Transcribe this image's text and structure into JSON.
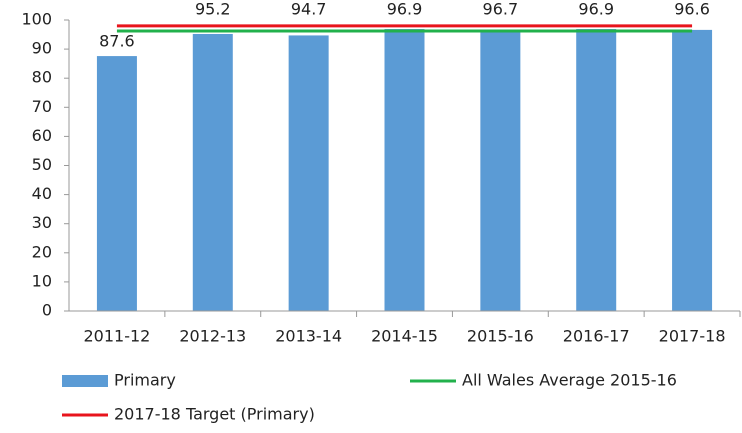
{
  "chart_data": {
    "type": "bar",
    "categories": [
      "2011-12",
      "2012-13",
      "2013-14",
      "2014-15",
      "2015-16",
      "2016-17",
      "2017-18"
    ],
    "series": [
      {
        "name": "Primary",
        "type": "bar",
        "color": "#5b9bd5",
        "values": [
          87.6,
          95.2,
          94.7,
          96.9,
          96.7,
          96.9,
          96.6
        ]
      },
      {
        "name": "All Wales Average 2015-16",
        "type": "line",
        "color": "#22b14c",
        "values": [
          96.2,
          96.2,
          96.2,
          96.2,
          96.2,
          96.2,
          96.2
        ]
      },
      {
        "name": "2017-18 Target (Primary)",
        "type": "line",
        "color": "#e8141c",
        "values": [
          98,
          98,
          98,
          98,
          98,
          98,
          98
        ]
      }
    ],
    "ylim": [
      0,
      100
    ],
    "yticks": [
      0,
      10,
      20,
      30,
      40,
      50,
      60,
      70,
      80,
      90,
      100
    ],
    "grid": false
  }
}
